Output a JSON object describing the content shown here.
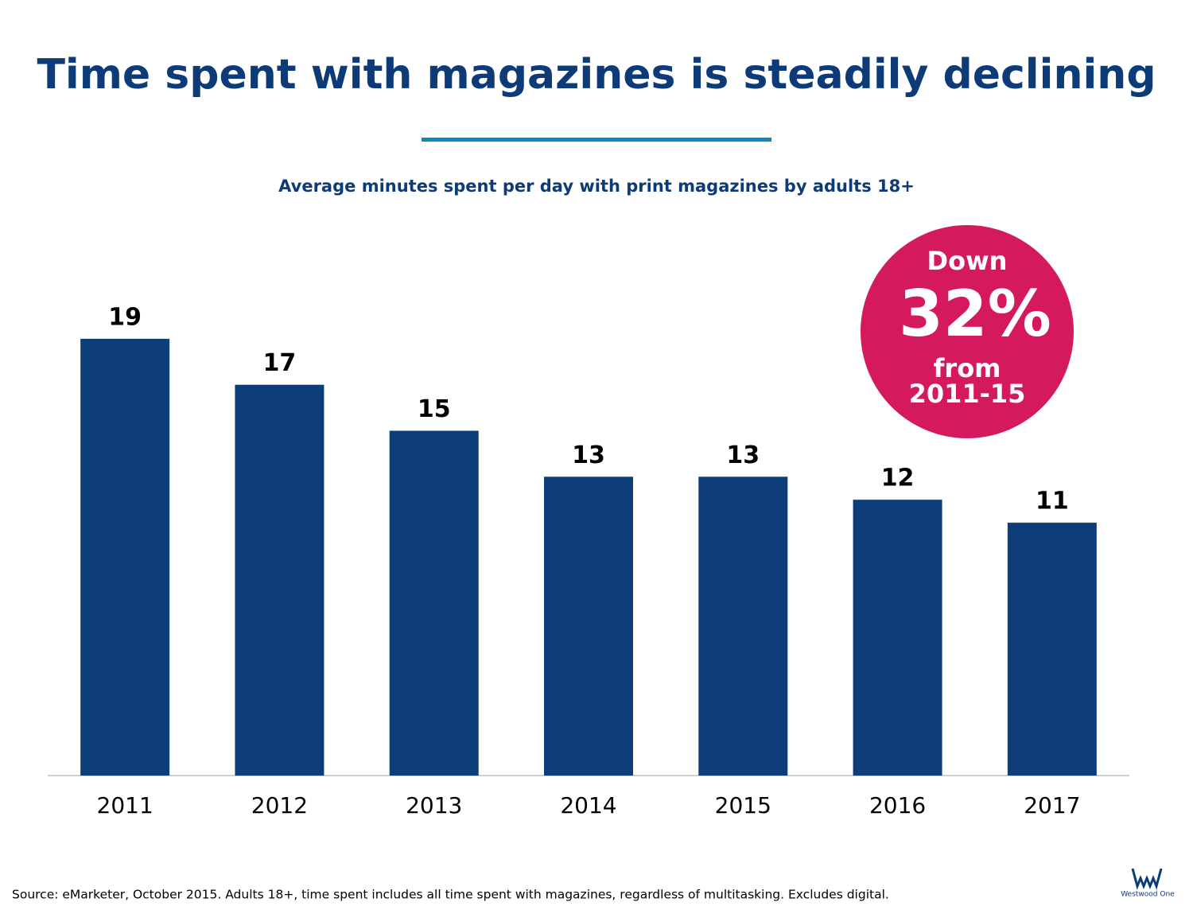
{
  "chart_data": {
    "type": "bar",
    "title": "Time spent with magazines is steadily declining",
    "subtitle": "Average minutes spent per day with print magazines by adults 18+",
    "categories": [
      "2011",
      "2012",
      "2013",
      "2014",
      "2015",
      "2016",
      "2017"
    ],
    "values": [
      19,
      17,
      15,
      13,
      13,
      12,
      11
    ],
    "color": "#0d3e7a",
    "annotation": {
      "line1": "Down",
      "line2": "32%",
      "line3": "from",
      "line4": "2011-15",
      "color": "#d5195f"
    },
    "source": "Source: eMarketer, October 2015. Adults 18+, time spent includes all time spent with magazines, regardless of multitasking. Excludes digital.",
    "logo": "Westwood One"
  }
}
